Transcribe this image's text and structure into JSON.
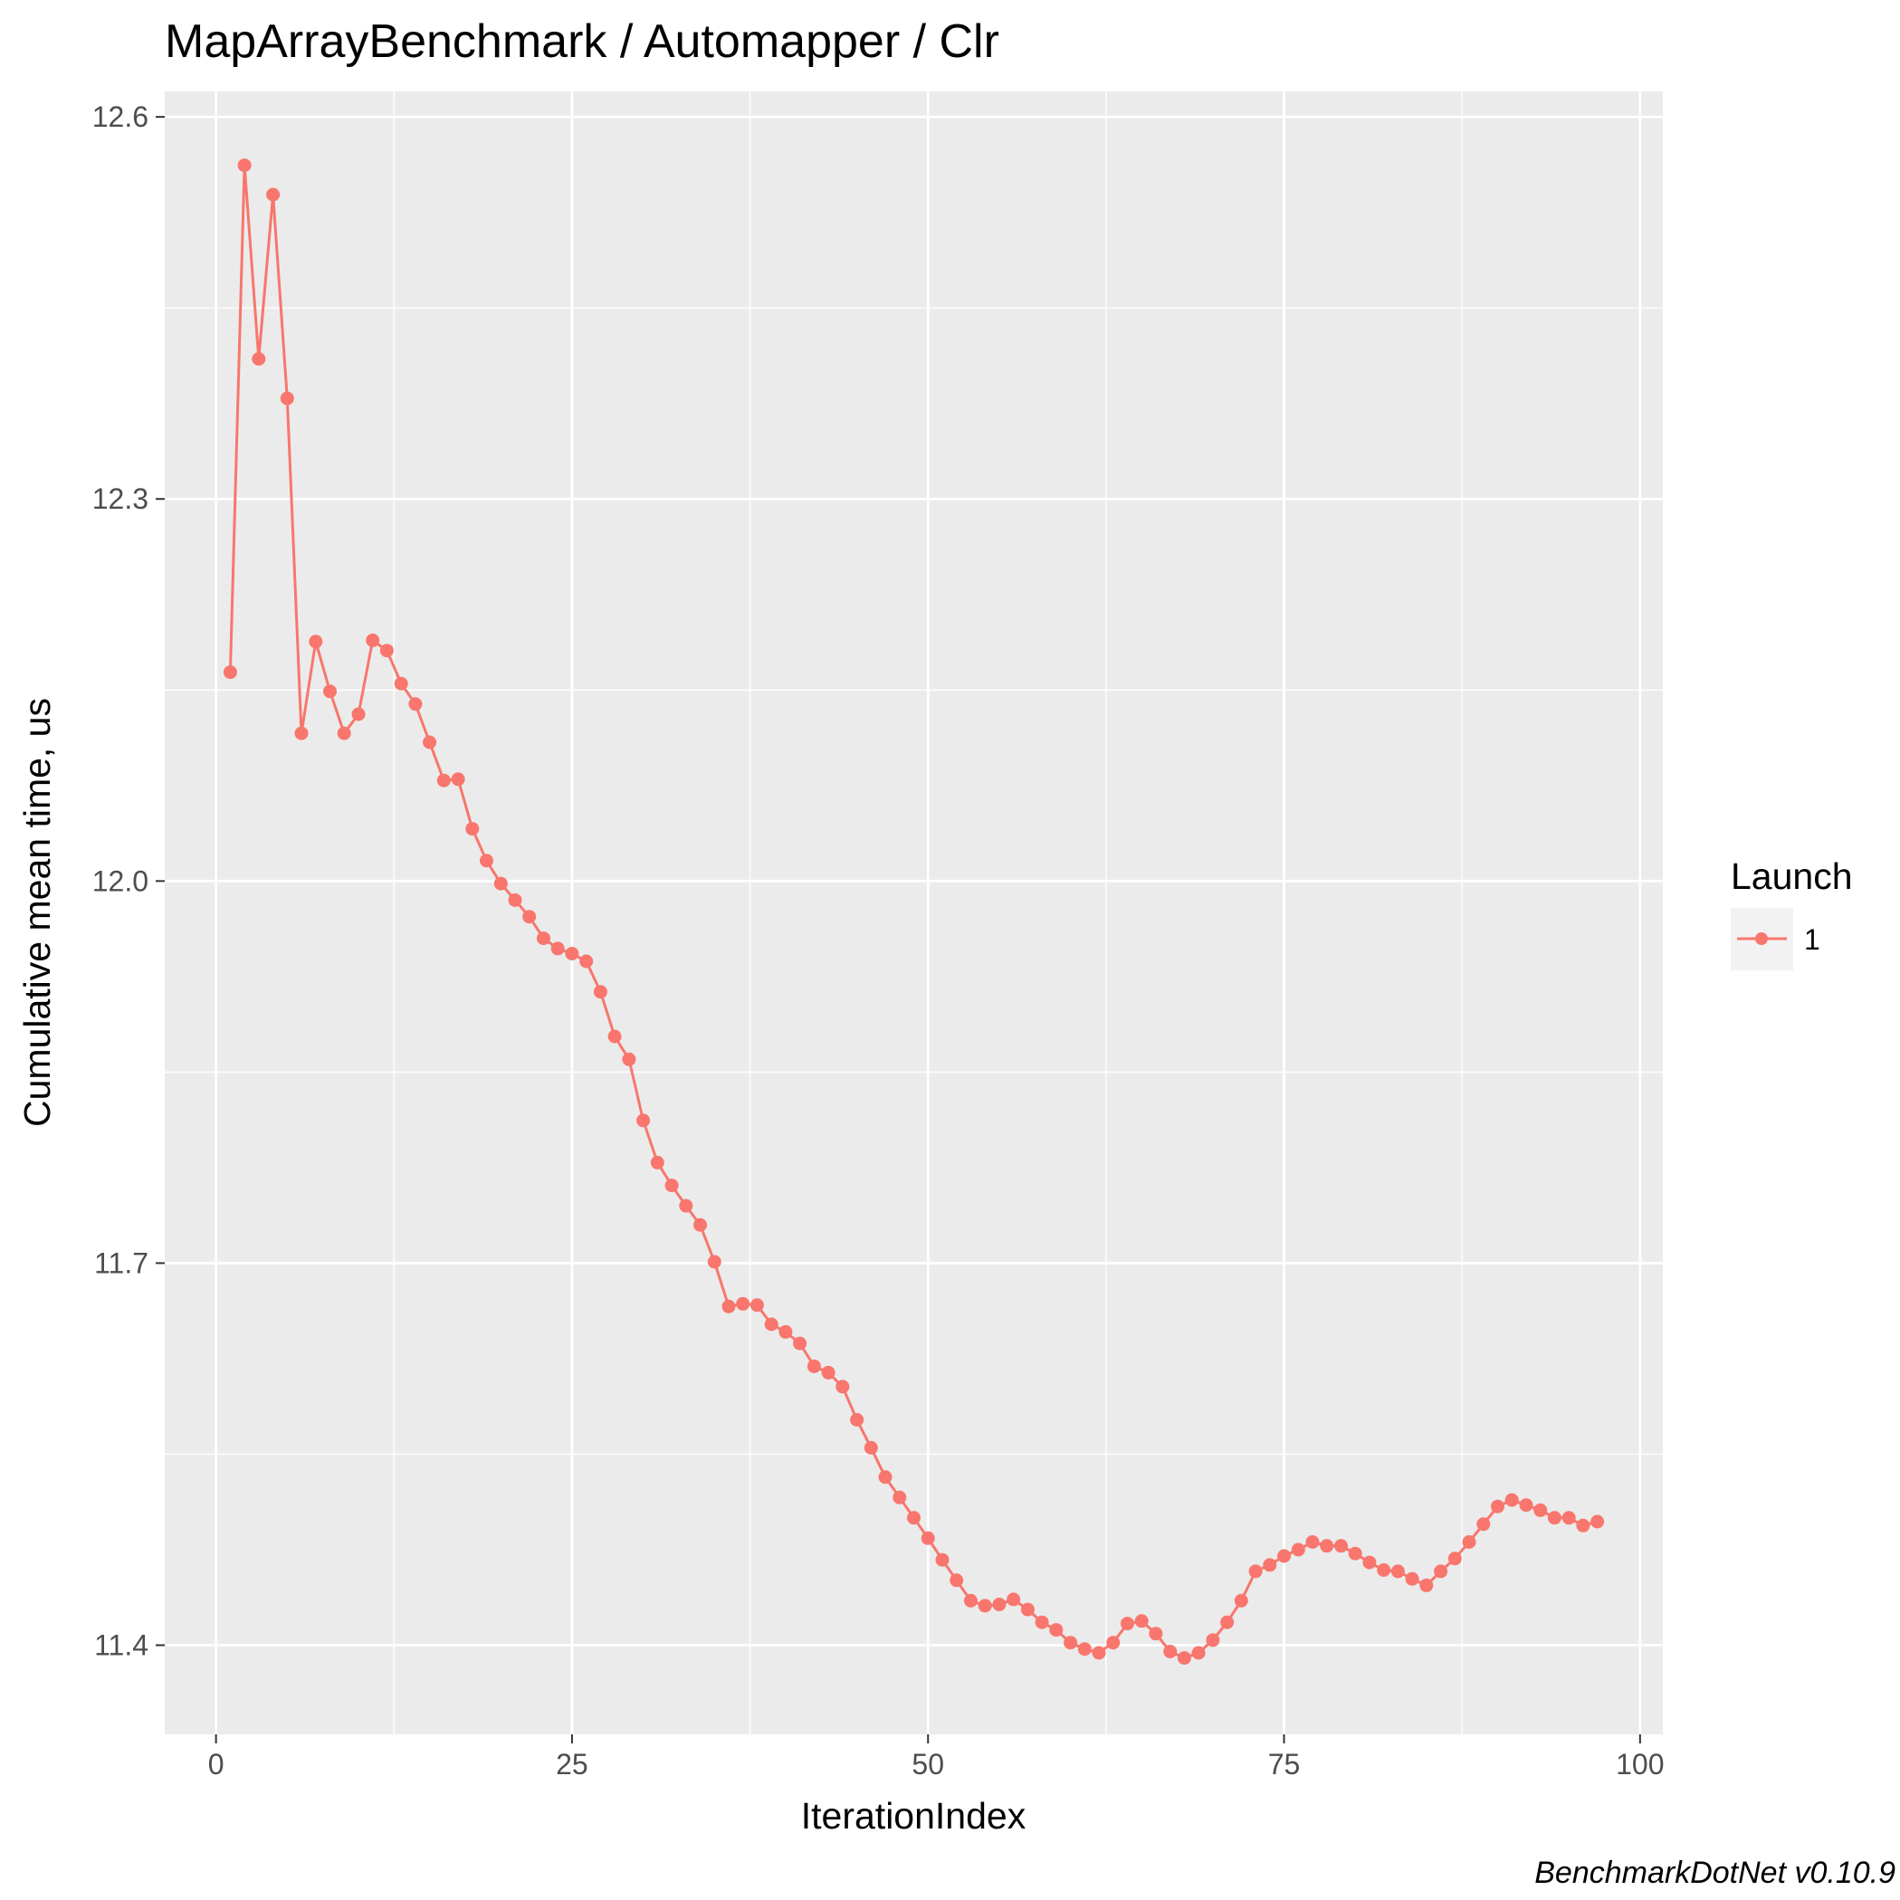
{
  "chart_data": {
    "type": "line",
    "title": "MapArrayBenchmark / Automapper / Clr",
    "xlabel": "IterationIndex",
    "ylabel": "Cumulative mean time, us",
    "caption": "BenchmarkDotNet v0.10.9",
    "xlim": [
      -3.6,
      101.6
    ],
    "ylim": [
      11.33,
      12.62
    ],
    "x_ticks": [
      0,
      25,
      50,
      75,
      100
    ],
    "x_tick_labels": [
      "0",
      "25",
      "50",
      "75",
      "100"
    ],
    "y_ticks": [
      11.4,
      11.7,
      12.0,
      12.3,
      12.6
    ],
    "y_tick_labels": [
      "11.4",
      "11.7",
      "12.0",
      "12.3",
      "12.6"
    ],
    "grid": true,
    "legend": {
      "title": "Launch",
      "position": "right"
    },
    "series": [
      {
        "name": "1",
        "color": "#f8766d",
        "x": [
          1,
          2,
          3,
          4,
          5,
          6,
          7,
          8,
          9,
          10,
          11,
          12,
          13,
          14,
          15,
          16,
          17,
          18,
          19,
          20,
          21,
          22,
          23,
          24,
          25,
          26,
          27,
          28,
          29,
          30,
          31,
          32,
          33,
          34,
          35,
          36,
          37,
          38,
          39,
          40,
          41,
          42,
          43,
          44,
          45,
          46,
          47,
          48,
          49,
          50,
          51,
          52,
          53,
          54,
          55,
          56,
          57,
          58,
          59,
          60,
          61,
          62,
          63,
          64,
          65,
          66,
          67,
          68,
          69,
          70,
          71,
          72,
          73,
          74,
          75,
          76,
          77,
          78,
          79,
          80,
          81,
          82,
          83,
          84,
          85,
          86,
          87,
          88,
          89,
          90,
          91,
          92,
          93,
          94,
          95,
          96,
          97
        ],
        "values": [
          12.164,
          12.562,
          12.41,
          12.539,
          12.379,
          12.116,
          12.188,
          12.149,
          12.116,
          12.131,
          12.189,
          12.181,
          12.155,
          12.139,
          12.109,
          12.079,
          12.08,
          12.041,
          12.016,
          11.998,
          11.985,
          11.972,
          11.955,
          11.947,
          11.943,
          11.937,
          11.913,
          11.878,
          11.86,
          11.812,
          11.779,
          11.761,
          11.745,
          11.73,
          11.701,
          11.666,
          11.668,
          11.667,
          11.652,
          11.646,
          11.637,
          11.619,
          11.614,
          11.603,
          11.577,
          11.555,
          11.532,
          11.516,
          11.5,
          11.484,
          11.467,
          11.451,
          11.435,
          11.431,
          11.432,
          11.436,
          11.428,
          11.418,
          11.412,
          11.402,
          11.397,
          11.394,
          11.402,
          11.417,
          11.419,
          11.409,
          11.395,
          11.39,
          11.394,
          11.404,
          11.418,
          11.435,
          11.458,
          11.463,
          11.47,
          11.475,
          11.481,
          11.478,
          11.478,
          11.472,
          11.465,
          11.459,
          11.458,
          11.452,
          11.447,
          11.458,
          11.468,
          11.481,
          11.495,
          11.509,
          11.514,
          11.51,
          11.506,
          11.5,
          11.5,
          11.494,
          11.497
        ]
      }
    ]
  }
}
